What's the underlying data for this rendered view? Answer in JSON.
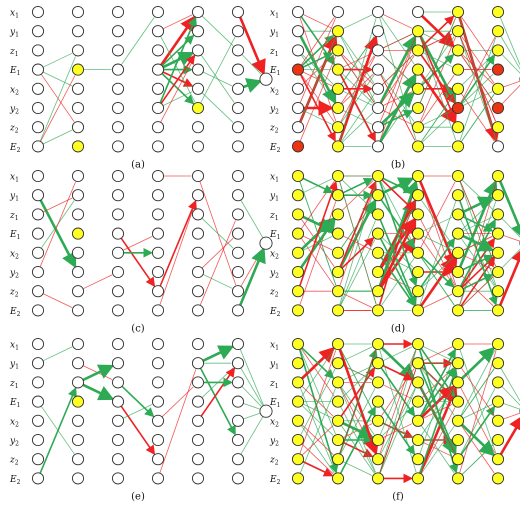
{
  "figure": {
    "input_labels": [
      {
        "base": "x",
        "sub": "1"
      },
      {
        "base": "y",
        "sub": "1"
      },
      {
        "base": "z",
        "sub": "1"
      },
      {
        "base": "E",
        "sub": "1"
      },
      {
        "base": "x",
        "sub": "2"
      },
      {
        "base": "y",
        "sub": "2"
      },
      {
        "base": "z",
        "sub": "2"
      },
      {
        "base": "E",
        "sub": "2"
      }
    ],
    "colors": {
      "node_fill": "#ffffff",
      "node_active": "#ffff22",
      "node_strong": "#ee3311",
      "node_stroke": "#333333",
      "positive_edge": "#2eaa55",
      "negative_edge": "#ee2222"
    },
    "panels": [
      {
        "caption": "(a)",
        "nodes": [
          [],
          [
            3,
            7
          ],
          [],
          [],
          [
            5
          ],
          [],
          [],
          []
        ],
        "edges": [
          [
            0,
            7,
            1,
            2,
            "g",
            1
          ],
          [
            0,
            3,
            1,
            2,
            "g",
            1
          ],
          [
            0,
            7,
            1,
            3,
            "r",
            1
          ],
          [
            0,
            3,
            1,
            6,
            "r",
            1
          ],
          [
            0,
            7,
            1,
            6,
            "g",
            1
          ],
          [
            0,
            3,
            1,
            4,
            "g",
            1
          ],
          [
            1,
            3,
            2,
            3,
            "g",
            1
          ],
          [
            2,
            3,
            3,
            0,
            "g",
            1
          ],
          [
            3,
            1,
            4,
            0,
            "r",
            1
          ],
          [
            3,
            3,
            4,
            0,
            "r",
            3
          ],
          [
            3,
            3,
            4,
            1,
            "g",
            2
          ],
          [
            3,
            3,
            4,
            2,
            "g",
            3
          ],
          [
            3,
            3,
            4,
            3,
            "g",
            2
          ],
          [
            3,
            3,
            4,
            4,
            "r",
            2
          ],
          [
            3,
            3,
            4,
            5,
            "g",
            2
          ],
          [
            3,
            5,
            4,
            0,
            "g",
            2
          ],
          [
            3,
            5,
            4,
            2,
            "r",
            2
          ],
          [
            3,
            5,
            4,
            4,
            "g",
            1
          ],
          [
            3,
            6,
            4,
            2,
            "r",
            1
          ],
          [
            3,
            1,
            4,
            5,
            "g",
            1
          ],
          [
            4,
            0,
            5,
            2,
            "g",
            1
          ],
          [
            4,
            3,
            5,
            4,
            "g",
            1
          ],
          [
            4,
            5,
            5,
            1,
            "g",
            1
          ],
          [
            4,
            4,
            5,
            6,
            "g",
            1
          ],
          [
            4,
            2,
            5,
            5,
            "g",
            1
          ],
          [
            5,
            0,
            6,
            0,
            "r",
            3
          ],
          [
            5,
            4,
            6,
            0,
            "g",
            3
          ],
          [
            5,
            2,
            6,
            0,
            "g",
            1
          ]
        ]
      },
      {
        "caption": "(b)",
        "nodes": [
          [
            3,
            7
          ],
          [
            1,
            2,
            3,
            4,
            5,
            6,
            7
          ],
          [],
          [
            1,
            2,
            3,
            4,
            5,
            6,
            7
          ],
          [
            0,
            1,
            2,
            3,
            4,
            5,
            6,
            7
          ],
          [
            0,
            1,
            2,
            3,
            4,
            5,
            6
          ],
          [],
          []
        ],
        "strong": [
          [
            3,
            7
          ],
          [],
          [],
          [],
          [
            5
          ],
          [
            3,
            5
          ],
          [],
          []
        ],
        "edges": "dense-b"
      },
      {
        "caption": "(c)",
        "nodes": [
          [],
          [
            3
          ],
          [],
          [],
          [],
          [],
          [],
          []
        ],
        "edges": "sparse-c"
      },
      {
        "caption": "(d)",
        "nodes": [
          [
            0,
            1,
            2,
            3,
            4,
            5,
            6,
            7
          ],
          [
            0,
            1,
            2,
            3,
            4,
            5,
            6,
            7
          ],
          [
            0,
            1,
            2,
            3,
            4,
            5,
            6,
            7
          ],
          [
            0,
            1,
            2,
            3,
            4,
            5,
            6,
            7
          ],
          [
            0,
            1,
            2,
            3,
            4,
            5,
            6,
            7
          ],
          [
            0,
            1,
            2,
            3,
            4,
            5,
            6,
            7
          ],
          [],
          []
        ],
        "edges": "dense-d"
      },
      {
        "caption": "(e)",
        "nodes": [
          [],
          [
            3
          ],
          [],
          [],
          [],
          [],
          [],
          []
        ],
        "edges": "sparse-e"
      },
      {
        "caption": "(f)",
        "nodes": [
          [
            0,
            1,
            2,
            3,
            4,
            5,
            6,
            7
          ],
          [
            0,
            1,
            2,
            3,
            4,
            5,
            6,
            7
          ],
          [
            0,
            1,
            2,
            3,
            4,
            5,
            6,
            7
          ],
          [
            0,
            1,
            2,
            3,
            4,
            5,
            6,
            7
          ],
          [
            0,
            1,
            2,
            3,
            4,
            5,
            6,
            7
          ],
          [
            0,
            1,
            2,
            3,
            4,
            5,
            6,
            7
          ],
          [],
          []
        ],
        "edges": "dense-f"
      }
    ]
  }
}
